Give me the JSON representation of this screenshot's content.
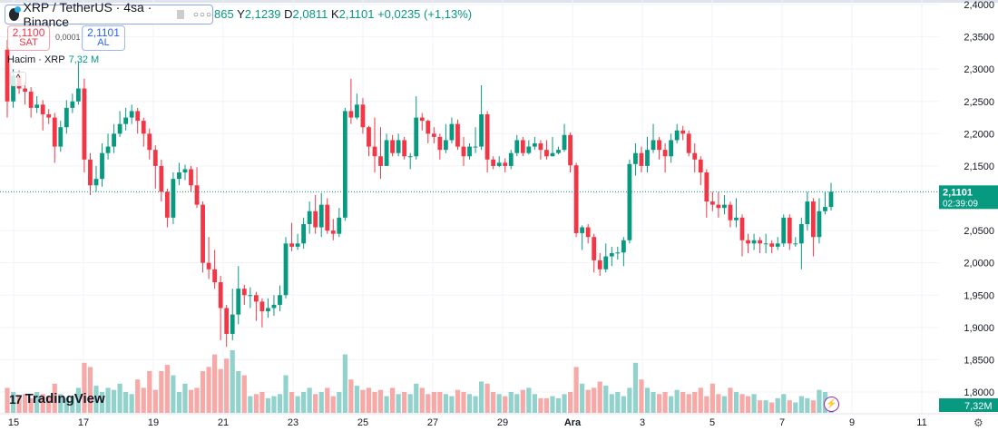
{
  "header": {
    "symbol_title": "XRP / TetherUS · 4sa · Binance",
    "ohlc_prefix": "865",
    "high_label": "Y",
    "high": "2,1239",
    "low_label": "D",
    "low": "2,0811",
    "close_label": "K",
    "close": "2,1101",
    "change": "+0,0235 (+1,13%)"
  },
  "trade": {
    "sell_price": "2,1100",
    "sell_label": "SAT",
    "spread": "0,0001",
    "buy_price": "2,1101",
    "buy_label": "AL"
  },
  "volume_legend": {
    "label": "Hacim · XRP",
    "value": "7,32 M"
  },
  "logo_text": "TradingView",
  "colors": {
    "up": "#089981",
    "down": "#f23645",
    "up_volume": "#92d2cc",
    "down_volume": "#f7a9a7",
    "price_line": "#089981",
    "grid": "#f0f3fa"
  },
  "icons": {
    "symbol": "xrp-logo-icon",
    "collapse": "chevron-up-icon",
    "bolt": "lightning-icon",
    "settings": "gear-icon"
  },
  "chart_data": {
    "type": "candlestick",
    "interval": "4sa",
    "y_ticks": [
      "2,4000",
      "2,3500",
      "2,3000",
      "2,2500",
      "2,2000",
      "2,1500",
      "2,0500",
      "2,0000",
      "1,9500",
      "1,9000",
      "1,8500",
      "1,8000"
    ],
    "ylim": [
      1.8,
      2.4
    ],
    "x_ticks": [
      "15",
      "17",
      "19",
      "21",
      "23",
      "25",
      "27",
      "29",
      "Ara",
      "3",
      "5",
      "7",
      "9",
      "11"
    ],
    "last_price": "2,1101",
    "countdown": "02:39:09",
    "last_volume": "7,32M",
    "grid": true,
    "ohlc": [
      [
        2.33,
        2.345,
        2.225,
        2.25
      ],
      [
        2.25,
        2.3,
        2.24,
        2.29
      ],
      [
        2.29,
        2.298,
        2.262,
        2.27
      ],
      [
        2.27,
        2.28,
        2.245,
        2.265
      ],
      [
        2.265,
        2.272,
        2.225,
        2.24
      ],
      [
        2.24,
        2.258,
        2.232,
        2.245
      ],
      [
        2.245,
        2.252,
        2.205,
        2.23
      ],
      [
        2.23,
        2.238,
        2.215,
        2.225
      ],
      [
        2.225,
        2.232,
        2.155,
        2.18
      ],
      [
        2.18,
        2.22,
        2.172,
        2.21
      ],
      [
        2.21,
        2.252,
        2.2,
        2.24
      ],
      [
        2.24,
        2.262,
        2.232,
        2.25
      ],
      [
        2.25,
        2.31,
        2.245,
        2.27
      ],
      [
        2.27,
        2.285,
        2.14,
        2.16
      ],
      [
        2.16,
        2.17,
        2.105,
        2.12
      ],
      [
        2.12,
        2.15,
        2.11,
        2.13
      ],
      [
        2.13,
        2.185,
        2.118,
        2.17
      ],
      [
        2.17,
        2.2,
        2.16,
        2.18
      ],
      [
        2.18,
        2.215,
        2.17,
        2.2
      ],
      [
        2.2,
        2.235,
        2.195,
        2.215
      ],
      [
        2.215,
        2.24,
        2.205,
        2.225
      ],
      [
        2.225,
        2.245,
        2.215,
        2.235
      ],
      [
        2.235,
        2.24,
        2.2,
        2.22
      ],
      [
        2.22,
        2.225,
        2.18,
        2.2
      ],
      [
        2.2,
        2.208,
        2.16,
        2.175
      ],
      [
        2.175,
        2.182,
        2.115,
        2.15
      ],
      [
        2.15,
        2.16,
        2.095,
        2.11
      ],
      [
        2.11,
        2.115,
        2.055,
        2.07
      ],
      [
        2.07,
        2.14,
        2.06,
        2.13
      ],
      [
        2.13,
        2.155,
        2.12,
        2.14
      ],
      [
        2.14,
        2.152,
        2.128,
        2.145
      ],
      [
        2.145,
        2.15,
        2.11,
        2.12
      ],
      [
        2.12,
        2.148,
        2.085,
        2.09
      ],
      [
        2.09,
        2.095,
        1.985,
        2.0
      ],
      [
        2.0,
        2.04,
        1.975,
        1.99
      ],
      [
        1.99,
        2.02,
        1.96,
        1.97
      ],
      [
        1.97,
        1.98,
        1.88,
        1.93
      ],
      [
        1.93,
        1.935,
        1.87,
        1.89
      ],
      [
        1.89,
        1.96,
        1.88,
        1.92
      ],
      [
        1.92,
        1.995,
        1.905,
        1.96
      ],
      [
        1.96,
        1.966,
        1.935,
        1.95
      ],
      [
        1.95,
        1.962,
        1.93,
        1.95
      ],
      [
        1.95,
        1.955,
        1.91,
        1.94
      ],
      [
        1.94,
        1.945,
        1.9,
        1.925
      ],
      [
        1.925,
        1.945,
        1.915,
        1.93
      ],
      [
        1.93,
        1.95,
        1.918,
        1.935
      ],
      [
        1.935,
        1.965,
        1.925,
        1.95
      ],
      [
        1.95,
        2.04,
        1.945,
        2.03
      ],
      [
        2.03,
        2.062,
        2.018,
        2.025
      ],
      [
        2.025,
        2.045,
        2.02,
        2.03
      ],
      [
        2.03,
        2.07,
        2.022,
        2.06
      ],
      [
        2.06,
        2.095,
        2.045,
        2.08
      ],
      [
        2.08,
        2.105,
        2.045,
        2.055
      ],
      [
        2.055,
        2.108,
        2.04,
        2.09
      ],
      [
        2.09,
        2.1,
        2.045,
        2.05
      ],
      [
        2.05,
        2.068,
        2.035,
        2.045
      ],
      [
        2.045,
        2.085,
        2.04,
        2.07
      ],
      [
        2.07,
        2.24,
        2.065,
        2.235
      ],
      [
        2.235,
        2.285,
        2.215,
        2.225
      ],
      [
        2.225,
        2.262,
        2.222,
        2.245
      ],
      [
        2.245,
        2.255,
        2.2,
        2.21
      ],
      [
        2.21,
        2.212,
        2.165,
        2.18
      ],
      [
        2.18,
        2.225,
        2.14,
        2.165
      ],
      [
        2.165,
        2.21,
        2.13,
        2.15
      ],
      [
        2.15,
        2.2,
        2.15,
        2.19
      ],
      [
        2.19,
        2.198,
        2.165,
        2.17
      ],
      [
        2.17,
        2.2,
        2.165,
        2.19
      ],
      [
        2.19,
        2.195,
        2.16,
        2.165
      ],
      [
        2.165,
        2.17,
        2.145,
        2.165
      ],
      [
        2.165,
        2.258,
        2.16,
        2.225
      ],
      [
        2.225,
        2.232,
        2.205,
        2.22
      ],
      [
        2.22,
        2.222,
        2.185,
        2.2
      ],
      [
        2.2,
        2.21,
        2.185,
        2.195
      ],
      [
        2.195,
        2.2,
        2.16,
        2.175
      ],
      [
        2.175,
        2.215,
        2.17,
        2.19
      ],
      [
        2.19,
        2.225,
        2.185,
        2.215
      ],
      [
        2.215,
        2.222,
        2.175,
        2.18
      ],
      [
        2.18,
        2.195,
        2.15,
        2.165
      ],
      [
        2.165,
        2.185,
        2.16,
        2.18
      ],
      [
        2.18,
        2.21,
        2.17,
        2.18
      ],
      [
        2.18,
        2.275,
        2.175,
        2.23
      ],
      [
        2.23,
        2.235,
        2.14,
        2.16
      ],
      [
        2.16,
        2.165,
        2.145,
        2.15
      ],
      [
        2.15,
        2.165,
        2.148,
        2.155
      ],
      [
        2.155,
        2.162,
        2.14,
        2.15
      ],
      [
        2.15,
        2.175,
        2.145,
        2.17
      ],
      [
        2.17,
        2.198,
        2.165,
        2.19
      ],
      [
        2.19,
        2.195,
        2.165,
        2.17
      ],
      [
        2.17,
        2.19,
        2.168,
        2.18
      ],
      [
        2.18,
        2.195,
        2.175,
        2.185
      ],
      [
        2.185,
        2.19,
        2.16,
        2.175
      ],
      [
        2.175,
        2.19,
        2.16,
        2.165
      ],
      [
        2.165,
        2.195,
        2.165,
        2.17
      ],
      [
        2.17,
        2.18,
        2.168,
        2.175
      ],
      [
        2.175,
        2.215,
        2.172,
        2.198
      ],
      [
        2.198,
        2.202,
        2.14,
        2.151
      ],
      [
        2.151,
        2.155,
        2.04,
        2.046
      ],
      [
        2.046,
        2.058,
        2.02,
        2.055
      ],
      [
        2.055,
        2.06,
        2.03,
        2.04
      ],
      [
        2.04,
        2.045,
        1.985,
        2.004
      ],
      [
        2.004,
        2.015,
        1.98,
        1.99
      ],
      [
        1.99,
        2.03,
        1.985,
        2.01
      ],
      [
        2.01,
        2.025,
        1.995,
        2.015
      ],
      [
        2.015,
        2.025,
        2.005,
        2.016
      ],
      [
        2.016,
        2.04,
        1.995,
        2.035
      ],
      [
        2.035,
        2.16,
        2.03,
        2.153
      ],
      [
        2.153,
        2.185,
        2.135,
        2.17
      ],
      [
        2.17,
        2.18,
        2.14,
        2.15
      ],
      [
        2.15,
        2.195,
        2.14,
        2.175
      ],
      [
        2.175,
        2.215,
        2.17,
        2.19
      ],
      [
        2.19,
        2.195,
        2.16,
        2.175
      ],
      [
        2.175,
        2.185,
        2.14,
        2.165
      ],
      [
        2.165,
        2.2,
        2.155,
        2.19
      ],
      [
        2.19,
        2.215,
        2.185,
        2.205
      ],
      [
        2.205,
        2.212,
        2.19,
        2.2
      ],
      [
        2.2,
        2.205,
        2.165,
        2.17
      ],
      [
        2.17,
        2.185,
        2.14,
        2.16
      ],
      [
        2.16,
        2.165,
        2.12,
        2.14
      ],
      [
        2.14,
        2.145,
        2.07,
        2.095
      ],
      [
        2.095,
        2.11,
        2.08,
        2.09
      ],
      [
        2.09,
        2.11,
        2.07,
        2.085
      ],
      [
        2.085,
        2.105,
        2.075,
        2.09
      ],
      [
        2.09,
        2.095,
        2.055,
        2.066
      ],
      [
        2.066,
        2.1,
        2.055,
        2.07
      ],
      [
        2.07,
        2.075,
        2.01,
        2.035
      ],
      [
        2.035,
        2.045,
        2.015,
        2.03
      ],
      [
        2.03,
        2.045,
        2.02,
        2.035
      ],
      [
        2.035,
        2.04,
        2.015,
        2.03
      ],
      [
        2.03,
        2.045,
        2.015,
        2.03
      ],
      [
        2.03,
        2.035,
        2.015,
        2.025
      ],
      [
        2.025,
        2.04,
        2.02,
        2.03
      ],
      [
        2.03,
        2.075,
        2.025,
        2.07
      ],
      [
        2.07,
        2.075,
        2.02,
        2.03
      ],
      [
        2.03,
        2.04,
        2.025,
        2.03
      ],
      [
        2.03,
        2.07,
        1.99,
        2.06
      ],
      [
        2.06,
        2.11,
        2.05,
        2.095
      ],
      [
        2.095,
        2.1,
        2.01,
        2.04
      ],
      [
        2.04,
        2.1,
        2.03,
        2.08
      ],
      [
        2.08,
        2.11,
        2.075,
        2.0865
      ],
      [
        2.0865,
        2.1239,
        2.0811,
        2.1101
      ]
    ],
    "volume_m": [
      12,
      10,
      8,
      9,
      7,
      10,
      9,
      8,
      14,
      9,
      7,
      8,
      12,
      24,
      22,
      13,
      10,
      12,
      11,
      14,
      10,
      9,
      16,
      12,
      20,
      11,
      20,
      23,
      18,
      10,
      14,
      11,
      12,
      20,
      22,
      28,
      21,
      26,
      30,
      20,
      18,
      8,
      9,
      10,
      7,
      8,
      9,
      18,
      10,
      8,
      10,
      12,
      9,
      10,
      12,
      8,
      10,
      28,
      16,
      13,
      11,
      12,
      10,
      11,
      8,
      12,
      9,
      10,
      9,
      14,
      12,
      9,
      10,
      10,
      9,
      8,
      11,
      10,
      9,
      8,
      15,
      14,
      10,
      9,
      8,
      10,
      9,
      11,
      12,
      9,
      7,
      7,
      8,
      7,
      9,
      10,
      22,
      14,
      11,
      12,
      15,
      13,
      9,
      10,
      8,
      12,
      24,
      16,
      12,
      10,
      9,
      10,
      8,
      11,
      10,
      9,
      10,
      12,
      8,
      14,
      9,
      8,
      12,
      10,
      9,
      8,
      9,
      6,
      6,
      5,
      7,
      9,
      6,
      5,
      8,
      7,
      6,
      11,
      10,
      7.32
    ]
  }
}
